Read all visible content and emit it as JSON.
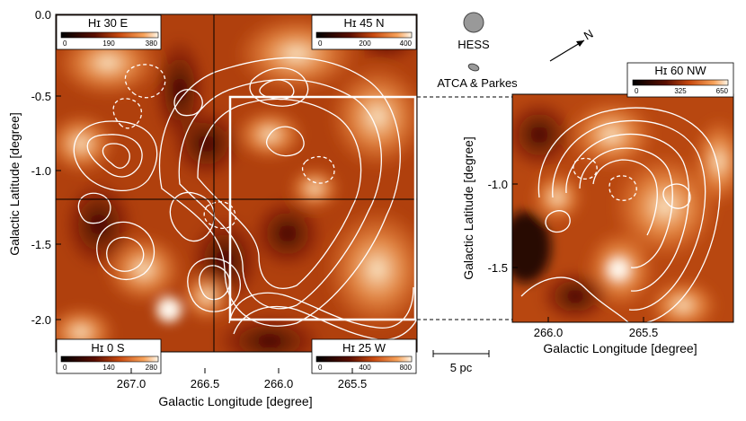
{
  "left_panel": {
    "xlabel": "Galactic Longitude [degree]",
    "ylabel": "Galactic Latitude [degree]",
    "xticks": [
      "267.0",
      "266.5",
      "266.0",
      "265.5"
    ],
    "yticks": [
      "0.0",
      "-0.5",
      "-1.0",
      "-1.5",
      "-2.0"
    ],
    "quadrants": [
      {
        "title": "Hɪ 30 E",
        "ticks": [
          "0",
          "190",
          "380"
        ]
      },
      {
        "title": "Hɪ 45 N",
        "ticks": [
          "0",
          "200",
          "400"
        ]
      },
      {
        "title": "Hɪ 0 S",
        "ticks": [
          "0",
          "140",
          "280"
        ]
      },
      {
        "title": "Hɪ 25 W",
        "ticks": [
          "0",
          "400",
          "800"
        ]
      }
    ]
  },
  "right_panel": {
    "title": "Hɪ 60 NW",
    "ticks": [
      "0",
      "325",
      "650"
    ],
    "xlabel": "Galactic Longitude [degree]",
    "ylabel": "Galactic Latitude [degree]",
    "xticks": [
      "266.0",
      "265.5"
    ],
    "yticks": [
      "-1.0",
      "-1.5"
    ]
  },
  "annotations": {
    "hess_label": "HESS",
    "atca_label": "ATCA & Parkes",
    "north_label": "N",
    "scale_label": "5 pc"
  },
  "colors": {
    "heat_dark": "#1a0200",
    "heat_mid": "#c24410",
    "heat_bright": "#ffe8c0",
    "contour": "#ffffff"
  }
}
